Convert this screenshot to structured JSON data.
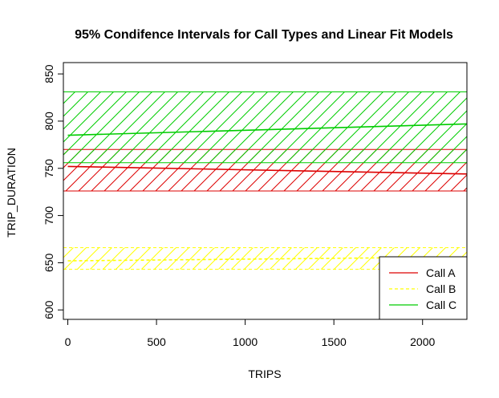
{
  "chart_data": {
    "type": "line",
    "title": "95% Condifence Intervals for Call Types and Linear Fit Models",
    "xlabel": "TRIPS",
    "ylabel": "TRIP_DURATION",
    "xlim": [
      -25,
      2250
    ],
    "ylim": [
      590,
      862
    ],
    "x_ticks": [
      0,
      500,
      1000,
      1500,
      2000
    ],
    "y_ticks": [
      600,
      650,
      700,
      750,
      800,
      850
    ],
    "grid": false,
    "legend_position": "bottom-right",
    "series": [
      {
        "name": "Call A",
        "color": "#dd0000",
        "line_style": "solid",
        "ci_lower": 726,
        "ci_upper": 770,
        "fit": {
          "x": [
            0,
            2250
          ],
          "y": [
            752,
            744
          ]
        }
      },
      {
        "name": "Call B",
        "color": "#ffff00",
        "line_style": "dashed",
        "ci_lower": 643,
        "ci_upper": 666,
        "fit": {
          "x": [
            0,
            2250
          ],
          "y": [
            652,
            656
          ]
        }
      },
      {
        "name": "Call C",
        "color": "#00cc00",
        "line_style": "solid",
        "ci_lower": 756,
        "ci_upper": 831,
        "fit": {
          "x": [
            0,
            2250
          ],
          "y": [
            785,
            797
          ]
        }
      }
    ]
  }
}
